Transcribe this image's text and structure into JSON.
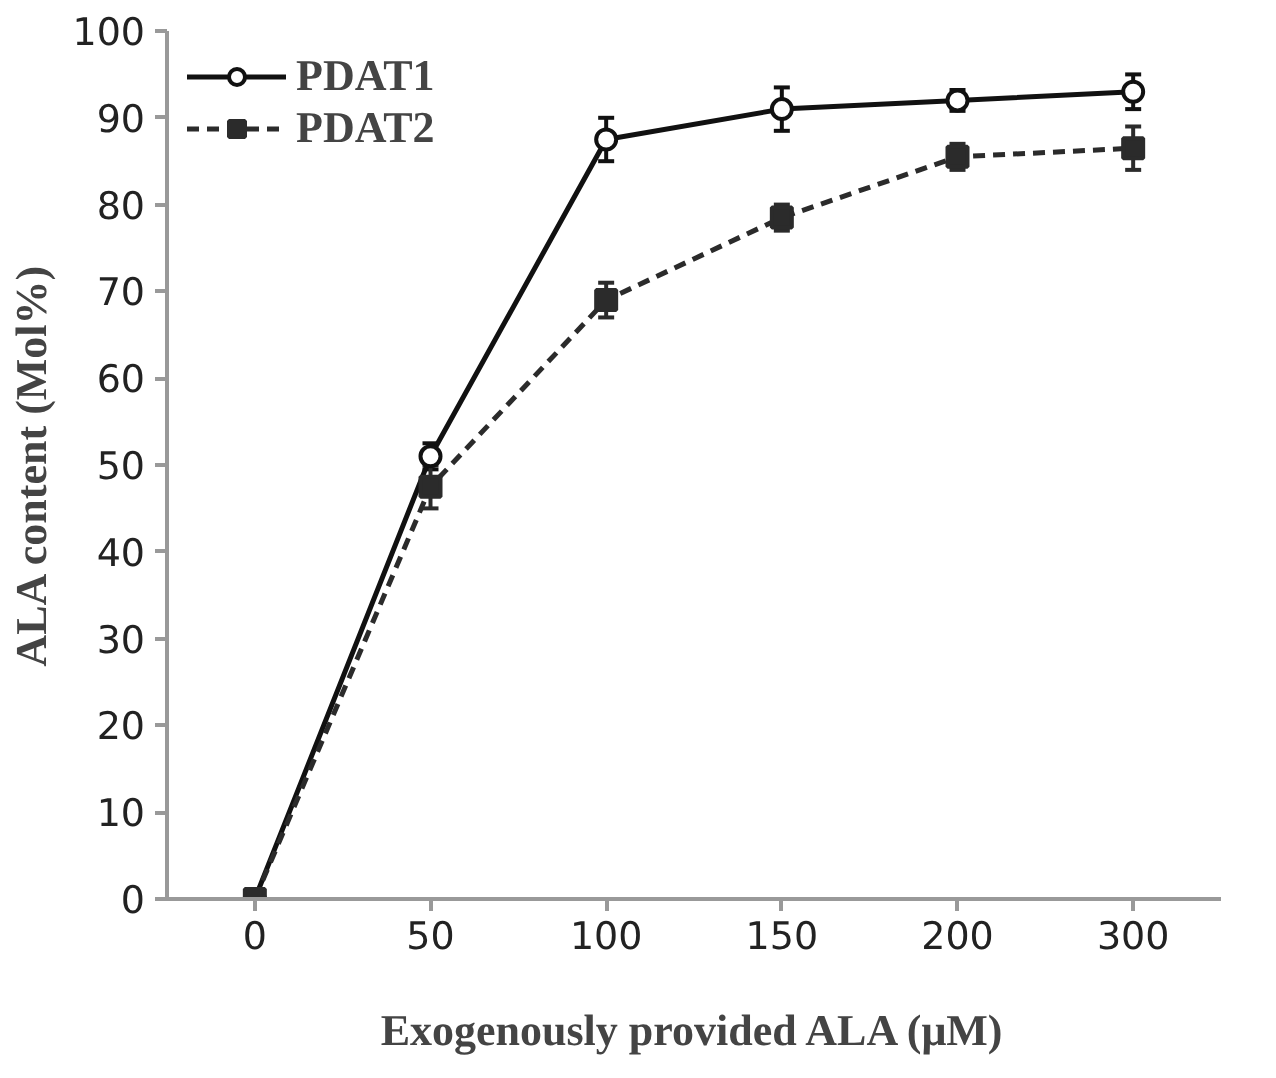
{
  "chart_data": {
    "type": "line",
    "xlabel": "Exogenously provided ALA (μM)",
    "ylabel": "ALA content (Mol%)",
    "categories": [
      "0",
      "50",
      "100",
      "150",
      "200",
      "300"
    ],
    "ylim": [
      0,
      100
    ],
    "yticks": [
      0,
      10,
      20,
      30,
      40,
      50,
      60,
      70,
      80,
      90,
      100
    ],
    "grid": false,
    "legend": "top left",
    "series": [
      {
        "name": "PDAT1",
        "color": "#111111",
        "marker": "circle",
        "line_style": "solid",
        "values": [
          0,
          51,
          87.5,
          91,
          92,
          93
        ],
        "errors": [
          null,
          1.5,
          2.5,
          2.5,
          1.2,
          2
        ]
      },
      {
        "name": "PDAT2",
        "color": "#2b2b2b",
        "marker": "square",
        "line_style": "dashed",
        "values": [
          0,
          47.5,
          69,
          78.5,
          85.5,
          86.5
        ],
        "errors": [
          null,
          2.5,
          2,
          1.5,
          1.5,
          2.5
        ]
      }
    ]
  }
}
